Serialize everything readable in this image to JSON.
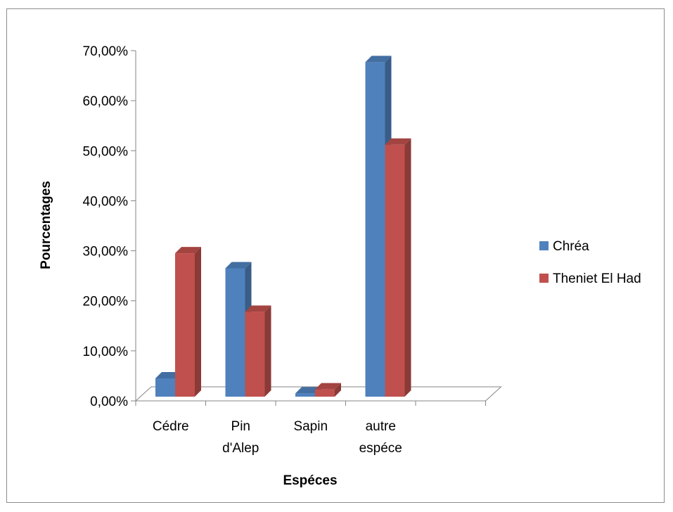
{
  "chart_data": {
    "type": "bar",
    "style": "3d-clustered-column",
    "categories": [
      [
        "Cédre"
      ],
      [
        "Pin",
        "d'Alep"
      ],
      [
        "Sapin"
      ],
      [
        "autre",
        "espéce"
      ]
    ],
    "series": [
      {
        "name": "Chréa",
        "values": [
          4.5,
          26.5,
          1.5,
          67.7
        ],
        "color": "#4f81bd"
      },
      {
        "name": "Theniet El Had",
        "values": [
          29.5,
          17.8,
          2.3,
          51.2
        ],
        "color": "#c0504d"
      }
    ],
    "y_ticks": [
      "0,00%",
      "10,00%",
      "20,00%",
      "30,00%",
      "40,00%",
      "50,00%",
      "60,00%",
      "70,00%"
    ],
    "ylim": [
      0,
      70
    ],
    "xlabel": "Espéces",
    "ylabel": "Pourcentages",
    "legend_position": "right",
    "grid": false
  }
}
